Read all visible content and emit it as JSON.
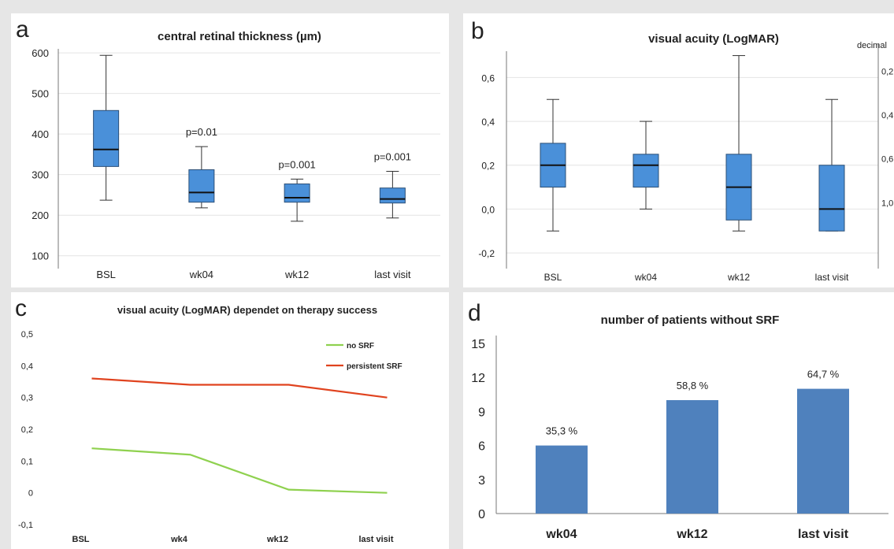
{
  "chart_data": [
    {
      "type": "box",
      "panel": "a",
      "title": "central retinal thickness (µm)",
      "categories": [
        "BSL",
        "wk04",
        "wk12",
        "last visit"
      ],
      "boxes": [
        {
          "min": 237,
          "q1": 320,
          "median": 362,
          "q3": 458,
          "max": 594,
          "annotation": ""
        },
        {
          "min": 218,
          "q1": 232,
          "median": 256,
          "q3": 312,
          "max": 369,
          "annotation": "p=0.01"
        },
        {
          "min": 185,
          "q1": 232,
          "median": 243,
          "q3": 277,
          "max": 289,
          "annotation": "p=0.001"
        },
        {
          "min": 193,
          "q1": 230,
          "median": 240,
          "q3": 267,
          "max": 308,
          "annotation": "p=0.001"
        }
      ],
      "yticks": [
        100,
        200,
        300,
        400,
        500,
        600
      ],
      "ylim": [
        80,
        610
      ]
    },
    {
      "type": "box",
      "panel": "b",
      "title": "visual acuity  (LogMAR)",
      "categories": [
        "BSL",
        "wk04",
        "wk12",
        "last visit"
      ],
      "boxes": [
        {
          "min": -0.1,
          "q1": 0.1,
          "median": 0.2,
          "q3": 0.3,
          "max": 0.5
        },
        {
          "min": 0.0,
          "q1": 0.1,
          "median": 0.2,
          "q3": 0.25,
          "max": 0.4
        },
        {
          "min": -0.1,
          "q1": -0.05,
          "median": 0.1,
          "q3": 0.25,
          "max": 0.7
        },
        {
          "min": -0.1,
          "q1": -0.1,
          "median": 0.0,
          "q3": 0.2,
          "max": 0.5
        }
      ],
      "yticks": [
        "-0,2",
        "0,0",
        "0,2",
        "0,4",
        "0,6"
      ],
      "ytick_values": [
        -0.2,
        0.0,
        0.2,
        0.4,
        0.6
      ],
      "ylim": [
        -0.25,
        0.72
      ],
      "secondary_axis_label": "decimal",
      "secondary_ticks": [
        "0,2",
        "0,4",
        "0,6",
        "1,0"
      ]
    },
    {
      "type": "line",
      "panel": "c",
      "title": "visual acuity (LogMAR)  dependet on therapy success",
      "categories": [
        "BSL",
        "wk4",
        "wk12",
        "last visit"
      ],
      "series": [
        {
          "name": "no SRF",
          "color": "#8fd14f",
          "values": [
            0.14,
            0.12,
            0.01,
            0.0
          ]
        },
        {
          "name": "persistent SRF",
          "color": "#e0431f",
          "values": [
            0.36,
            0.34,
            0.34,
            0.3
          ]
        }
      ],
      "yticks": [
        "-0,1",
        "0",
        "0,1",
        "0,2",
        "0,3",
        "0,4",
        "0,5"
      ],
      "ytick_values": [
        -0.1,
        0,
        0.1,
        0.2,
        0.3,
        0.4,
        0.5
      ],
      "ylim": [
        -0.1,
        0.5
      ],
      "legend": "top-right"
    },
    {
      "type": "bar",
      "panel": "d",
      "title": "number of patients without SRF",
      "categories": [
        "wk04",
        "wk12",
        "last visit"
      ],
      "values": [
        6,
        10,
        11
      ],
      "labels": [
        "35,3 %",
        "58,8 %",
        "64,7 %"
      ],
      "yticks": [
        0,
        3,
        6,
        9,
        12,
        15
      ],
      "ylim": [
        0,
        15
      ]
    }
  ],
  "panels": {
    "a": "a",
    "b": "b",
    "c": "c",
    "d": "d"
  },
  "colors": {
    "box_fill": "#4a90d9",
    "box_stroke": "#2b4f77",
    "bar_fill": "#4f81bd"
  }
}
